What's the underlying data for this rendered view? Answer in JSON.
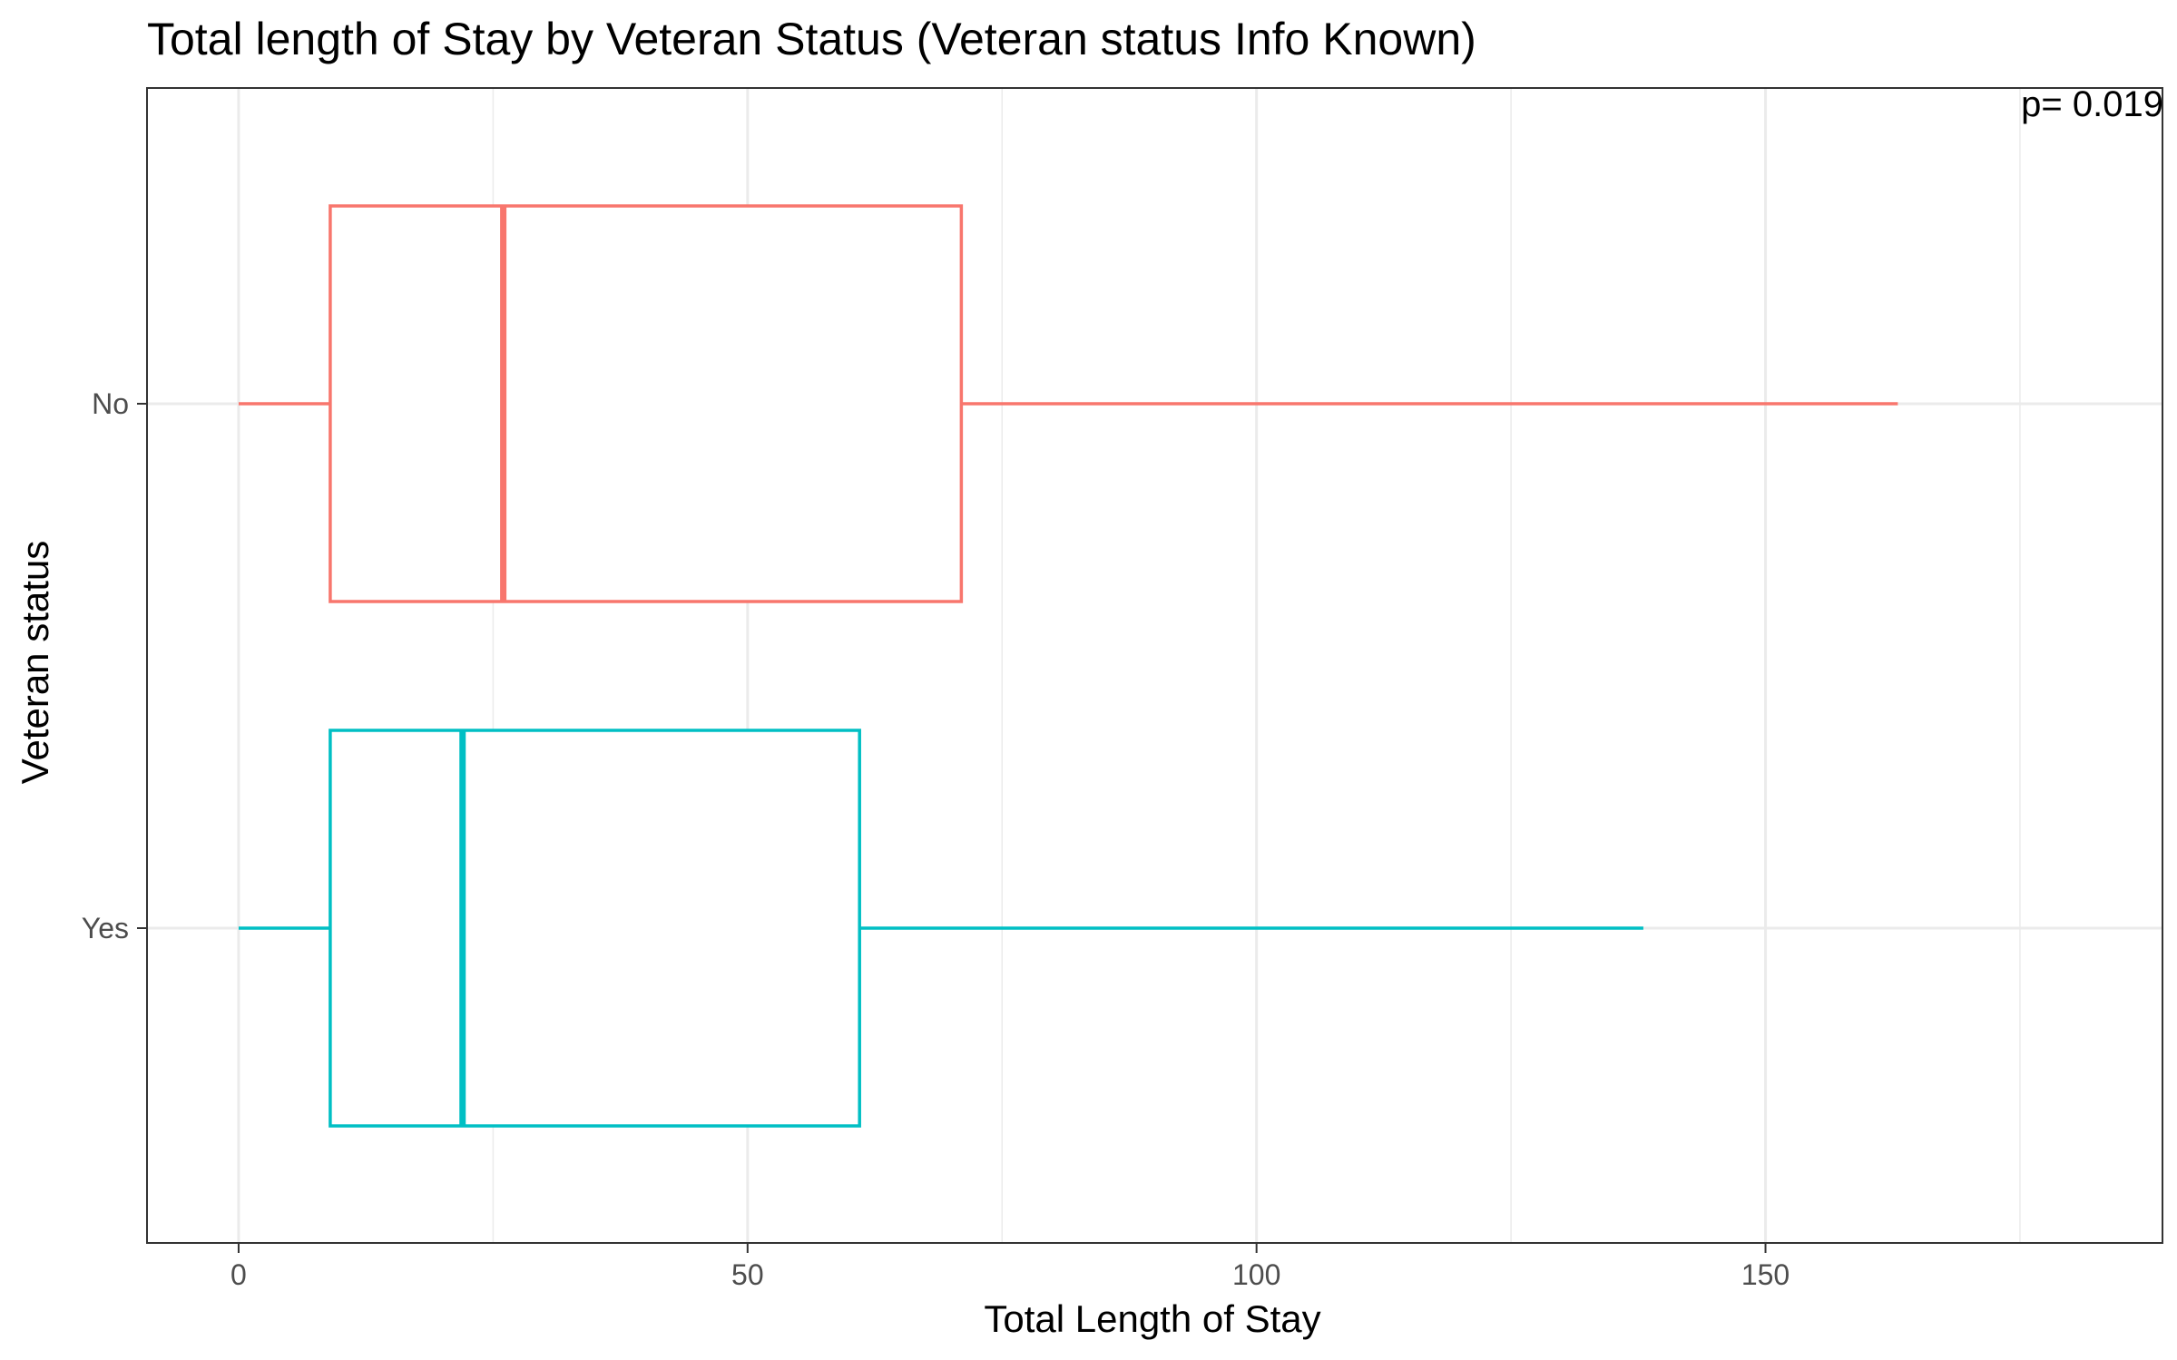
{
  "chart_data": {
    "type": "boxplot",
    "orientation": "horizontal",
    "title": "Total length of Stay by Veteran Status (Veteran status Info Known)",
    "xlabel": "Total Length of Stay",
    "ylabel": "Veteran status",
    "xlim": [
      -9,
      189
    ],
    "x_ticks": [
      0,
      50,
      100,
      150
    ],
    "x_tick_labels": [
      "0",
      "50",
      "100",
      "150"
    ],
    "categories": [
      "No",
      "Yes"
    ],
    "grid": true,
    "legend": "none",
    "annotation": "p= 0.019",
    "series": [
      {
        "category": "No",
        "color": "#F8766D",
        "min": 0,
        "q1": 9,
        "median": 26,
        "q3": 71,
        "max": 163
      },
      {
        "category": "Yes",
        "color": "#00BFC4",
        "min": 0,
        "q1": 9,
        "median": 22,
        "q3": 61,
        "max": 138
      }
    ]
  }
}
